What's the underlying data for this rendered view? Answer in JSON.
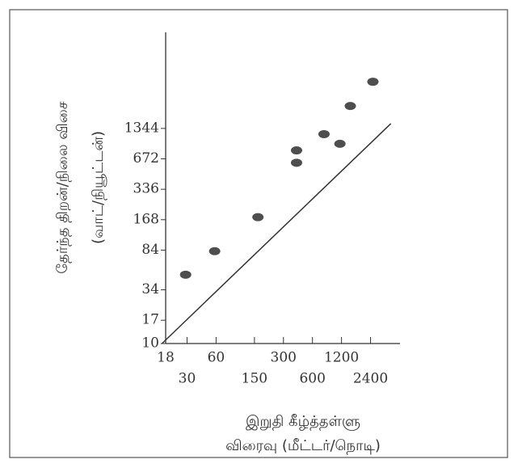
{
  "chart_data": {
    "type": "scatter",
    "y_label": [
      "தேர்ந்த திறன்/நிலை விசை",
      "(வாட்/நியூட்டன்)"
    ],
    "x_label": [
      "இறுதி கீழ்த்தள்ளு",
      "விரைவு (மீட்டர்/நொடி)"
    ],
    "log_x": true,
    "log_y": true,
    "xlim": [
      18,
      4000
    ],
    "ylim": [
      10,
      12000
    ],
    "xticks": [
      18,
      30,
      60,
      150,
      300,
      600,
      1200,
      2400
    ],
    "yticks": [
      10,
      17,
      34,
      84,
      168,
      336,
      672,
      1344
    ],
    "series": [
      {
        "type": "line",
        "color": "#333333",
        "x": [
          16.5,
          3900
        ],
        "values": [
          10,
          1500
        ]
      },
      {
        "type": "scatter",
        "color": "#222222",
        "x": [
          29,
          58,
          163,
          410,
          410,
          790,
          1155,
          1480,
          2540
        ],
        "values": [
          48,
          82,
          178,
          815,
          615,
          1180,
          947,
          2240,
          3890
        ]
      }
    ]
  }
}
